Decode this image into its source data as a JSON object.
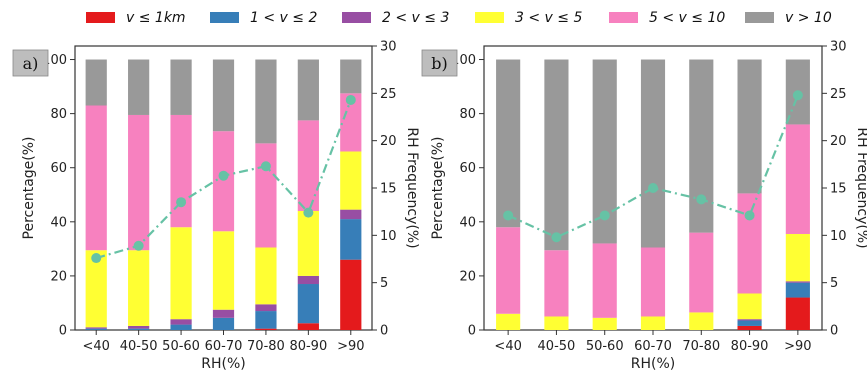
{
  "legend": [
    {
      "label": "v ≤ 1km",
      "color": "#e41a1c"
    },
    {
      "label": "1 < v ≤ 2",
      "color": "#377eb8"
    },
    {
      "label": "2 < v ≤ 3",
      "color": "#984ea3"
    },
    {
      "label": "3 < v ≤ 5",
      "color": "#ffff33"
    },
    {
      "label": "5 < v ≤ 10",
      "color": "#f781bf"
    },
    {
      "label": "v > 10",
      "color": "#999999"
    }
  ],
  "line_color": "#66c2a5",
  "chart_data": [
    {
      "type": "bar",
      "panel_label": "a)",
      "stacked": true,
      "categories": [
        "<40",
        "40-50",
        "50-60",
        "60-70",
        "70-80",
        "80-90",
        ">90"
      ],
      "xlabel": "RH(%)",
      "ylabel": "Percentage(%)",
      "ylabel_right": "RH Frequency(%)",
      "ylim": [
        0,
        105
      ],
      "ylim_right": [
        0,
        30
      ],
      "yticks": [
        0,
        20,
        40,
        60,
        80,
        100
      ],
      "yticks_right": [
        0,
        5,
        10,
        15,
        20,
        25,
        30
      ],
      "series": [
        {
          "name": "v ≤ 1km",
          "values": [
            0,
            0,
            0,
            0,
            0.5,
            2.5,
            26
          ]
        },
        {
          "name": "1 < v ≤ 2",
          "values": [
            0.5,
            0.5,
            2,
            4.5,
            6.5,
            14.5,
            15
          ]
        },
        {
          "name": "2 < v ≤ 3",
          "values": [
            0.5,
            1,
            2,
            3,
            2.5,
            3,
            3.5
          ]
        },
        {
          "name": "3 < v ≤ 5",
          "values": [
            28.5,
            28,
            34,
            29,
            21,
            24,
            21.5
          ]
        },
        {
          "name": "5 < v ≤ 10",
          "values": [
            53.5,
            50,
            41.5,
            37,
            38.5,
            33.5,
            21.5
          ]
        },
        {
          "name": "v > 10",
          "values": [
            17,
            20.5,
            20.5,
            26.5,
            31,
            22.5,
            12.5
          ]
        }
      ],
      "line": {
        "name": "RH Frequency",
        "axis": "right",
        "values": [
          7.6,
          8.9,
          13.5,
          16.3,
          17.3,
          12.4,
          24.3
        ]
      }
    },
    {
      "type": "bar",
      "panel_label": "b)",
      "stacked": true,
      "categories": [
        "<40",
        "40-50",
        "50-60",
        "60-70",
        "70-80",
        "80-90",
        ">90"
      ],
      "xlabel": "RH(%)",
      "ylabel": "Percentage(%)",
      "ylabel_right": "RH Frequency(%)",
      "ylim": [
        0,
        105
      ],
      "ylim_right": [
        0,
        30
      ],
      "yticks": [
        0,
        20,
        40,
        60,
        80,
        100
      ],
      "yticks_right": [
        0,
        5,
        10,
        15,
        20,
        25,
        30
      ],
      "series": [
        {
          "name": "v ≤ 1km",
          "values": [
            0,
            0,
            0,
            0,
            0,
            1.5,
            12
          ]
        },
        {
          "name": "1 < v ≤ 2",
          "values": [
            0,
            0,
            0,
            0,
            0,
            2,
            5.5
          ]
        },
        {
          "name": "2 < v ≤ 3",
          "values": [
            0,
            0,
            0,
            0,
            0,
            0.5,
            0.5
          ]
        },
        {
          "name": "3 < v ≤ 5",
          "values": [
            6,
            5,
            4.5,
            5,
            6.5,
            9.5,
            17.5
          ]
        },
        {
          "name": "5 < v ≤ 10",
          "values": [
            32,
            24.5,
            27.5,
            25.5,
            29.5,
            37,
            40.5
          ]
        },
        {
          "name": "v > 10",
          "values": [
            62,
            70.5,
            68,
            69.5,
            64,
            49.5,
            24
          ]
        }
      ],
      "line": {
        "name": "RH Frequency",
        "axis": "right",
        "values": [
          12.1,
          9.8,
          12.1,
          15.0,
          13.8,
          12.1,
          24.8
        ]
      }
    }
  ]
}
